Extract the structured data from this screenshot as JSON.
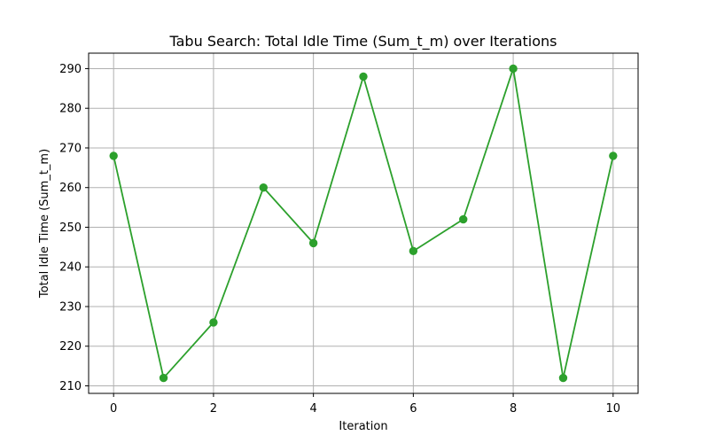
{
  "chart_data": {
    "type": "line",
    "title": "Tabu Search: Total Idle Time (Sum_t_m) over Iterations",
    "xlabel": "Iteration",
    "ylabel": "Total Idle Time (Sum_t_m)",
    "x": [
      0,
      1,
      2,
      3,
      4,
      5,
      6,
      7,
      8,
      9,
      10
    ],
    "series": [
      {
        "values": [
          268,
          212,
          226,
          260,
          246,
          288,
          244,
          252,
          290,
          212,
          268
        ],
        "color": "#2ca02c",
        "marker": "circle"
      }
    ],
    "xlim": [
      -0.5,
      10.5
    ],
    "ylim": [
      208.1,
      293.9
    ],
    "xticks": [
      0,
      2,
      4,
      6,
      8,
      10
    ],
    "yticks": [
      210,
      220,
      230,
      240,
      250,
      260,
      270,
      280,
      290
    ],
    "xtick_labels": [
      "0",
      "2",
      "4",
      "6",
      "8",
      "10"
    ],
    "ytick_labels": [
      "210",
      "220",
      "230",
      "240",
      "250",
      "260",
      "270",
      "280",
      "290"
    ],
    "grid": true,
    "legend": "none"
  }
}
